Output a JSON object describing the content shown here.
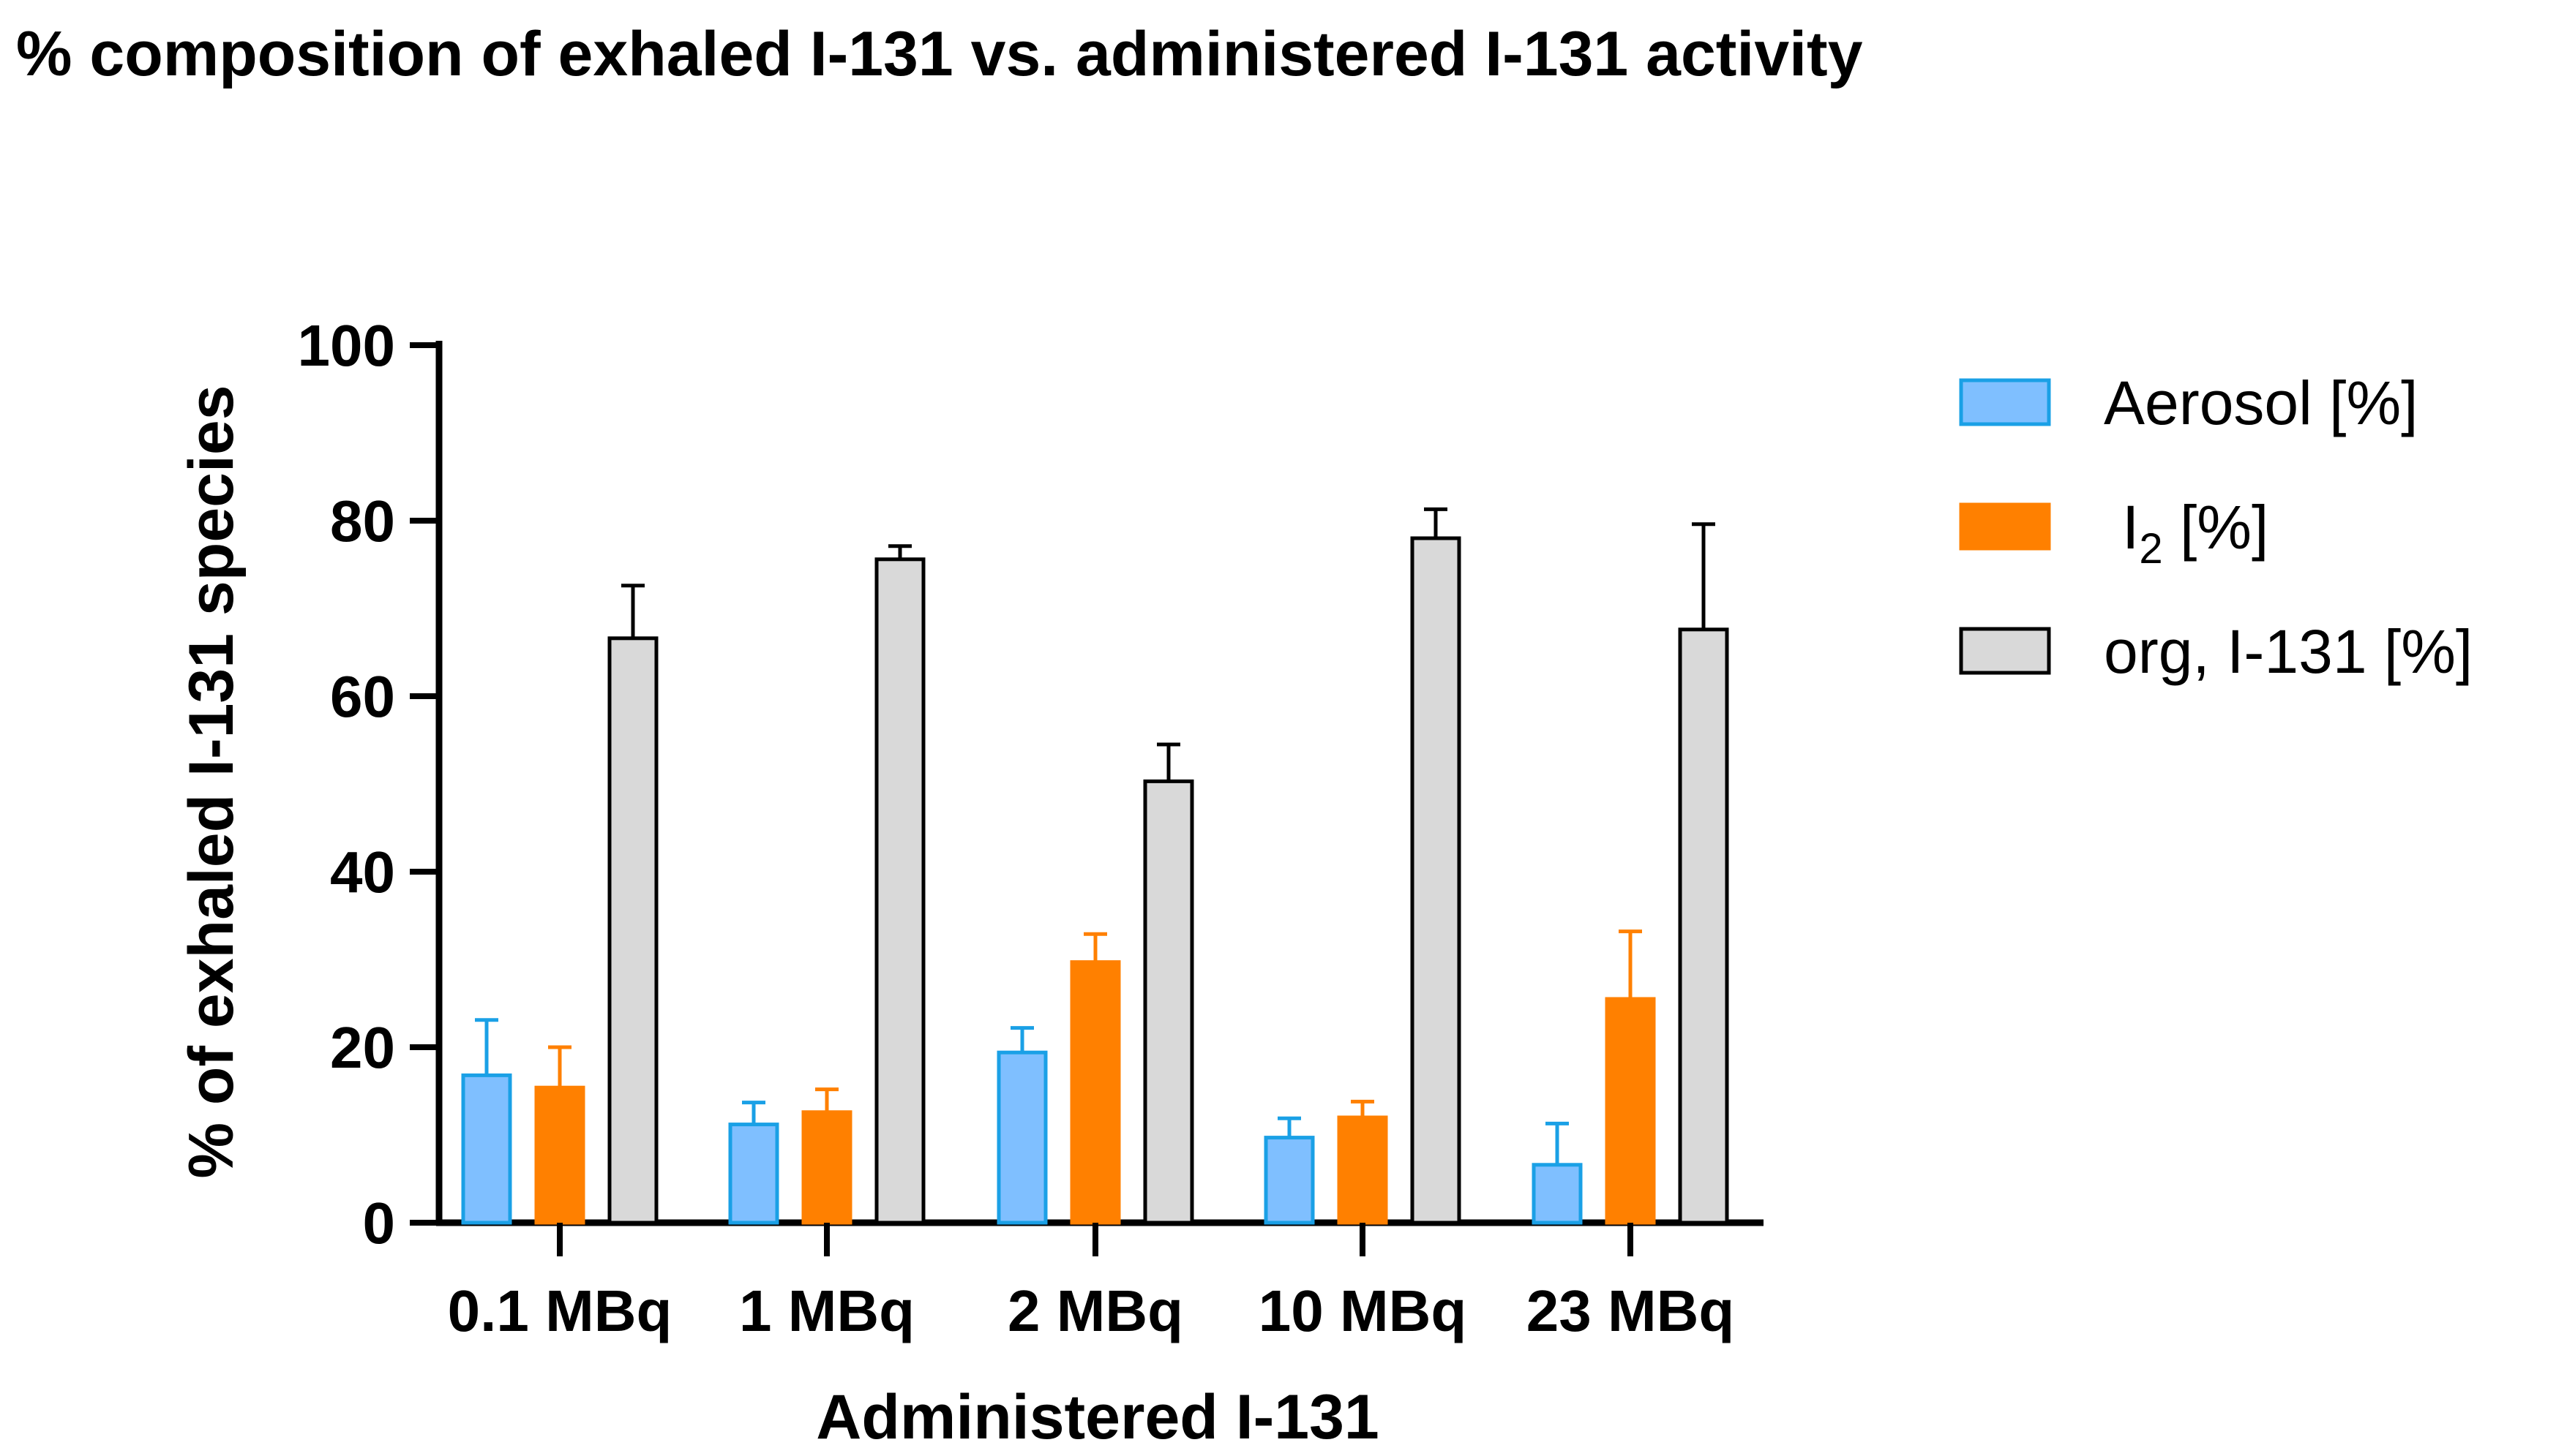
{
  "chart_data": {
    "type": "bar",
    "title": "% composition of exhaled I-131 vs. administered I-131 activity",
    "xlabel": "Administered I-131",
    "ylabel": "% of exhaled I-131 species",
    "ylim": [
      0,
      100
    ],
    "yticks": [
      "0",
      "20",
      "40",
      "60",
      "80",
      "100"
    ],
    "categories": [
      "0.1 MBq",
      "1 MBq",
      "2 MBq",
      "10 MBq",
      "23 MBq"
    ],
    "series": [
      {
        "name": "Aerosol [%]",
        "fill": "#7fbfff",
        "stroke": "#1aa0e6",
        "values": [
          16.8,
          11.2,
          19.4,
          9.7,
          6.6
        ],
        "errors": [
          6.3,
          2.5,
          2.8,
          2.2,
          4.7
        ]
      },
      {
        "name": "I2 [%]",
        "legend_main": "I",
        "legend_sub": "2",
        "legend_rest": " [%]",
        "fill": "#ff8000",
        "stroke": "#ff8000",
        "values": [
          15.4,
          12.6,
          29.7,
          12.0,
          25.5
        ],
        "errors": [
          4.6,
          2.6,
          3.2,
          1.8,
          7.7
        ]
      },
      {
        "name": "org, I-131 [%]",
        "fill": "#d9d9d9",
        "stroke": "#000000",
        "values": [
          66.6,
          75.6,
          50.3,
          78.0,
          67.6
        ],
        "errors": [
          6.0,
          1.5,
          4.2,
          3.3,
          12.0
        ]
      }
    ],
    "legend_position": "right"
  }
}
